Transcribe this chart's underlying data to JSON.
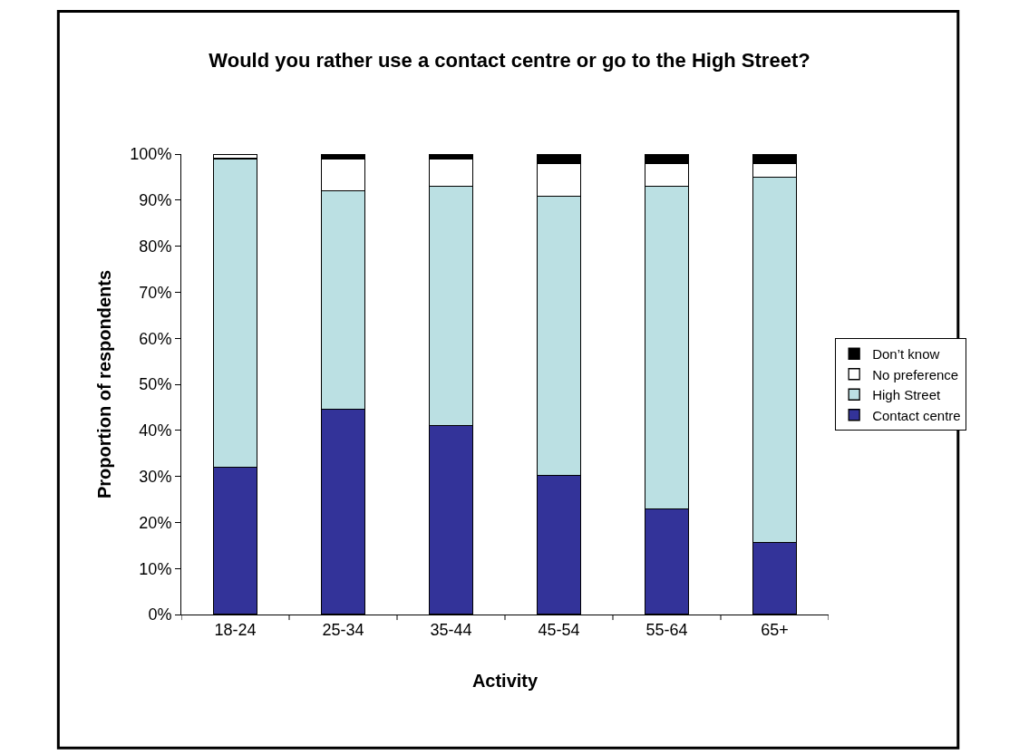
{
  "chart_data": {
    "type": "bar",
    "stacked": true,
    "title": "Would you rather use a contact centre or go to the High Street?",
    "xlabel": "Activity",
    "ylabel": "Proportion of respondents",
    "categories": [
      "18-24",
      "25-34",
      "35-44",
      "45-54",
      "55-64",
      "65+"
    ],
    "series": [
      {
        "name": "Contact centre",
        "color": "#333399",
        "values": [
          32,
          44.6,
          41,
          30.2,
          23,
          15.6
        ]
      },
      {
        "name": "High Street",
        "color": "#bbe0e3",
        "values": [
          67,
          47.4,
          52,
          60.6,
          70,
          79.4
        ]
      },
      {
        "name": "No preference",
        "color": "#ffffff",
        "values": [
          1,
          7,
          6,
          7.2,
          5,
          3
        ]
      },
      {
        "name": "Don’t know",
        "color": "#000000",
        "values": [
          0,
          1,
          1,
          2,
          2,
          2
        ]
      }
    ],
    "ylim": [
      0,
      100
    ],
    "yticks": [
      {
        "value": 0,
        "label": "0%"
      },
      {
        "value": 10,
        "label": "10%"
      },
      {
        "value": 20,
        "label": "20%"
      },
      {
        "value": 30,
        "label": "30%"
      },
      {
        "value": 40,
        "label": "40%"
      },
      {
        "value": 50,
        "label": "50%"
      },
      {
        "value": 60,
        "label": "60%"
      },
      {
        "value": 70,
        "label": "70%"
      },
      {
        "value": 80,
        "label": "80%"
      },
      {
        "value": 90,
        "label": "90%"
      },
      {
        "value": 100,
        "label": "100%"
      }
    ],
    "grid": false,
    "legend": "right"
  }
}
